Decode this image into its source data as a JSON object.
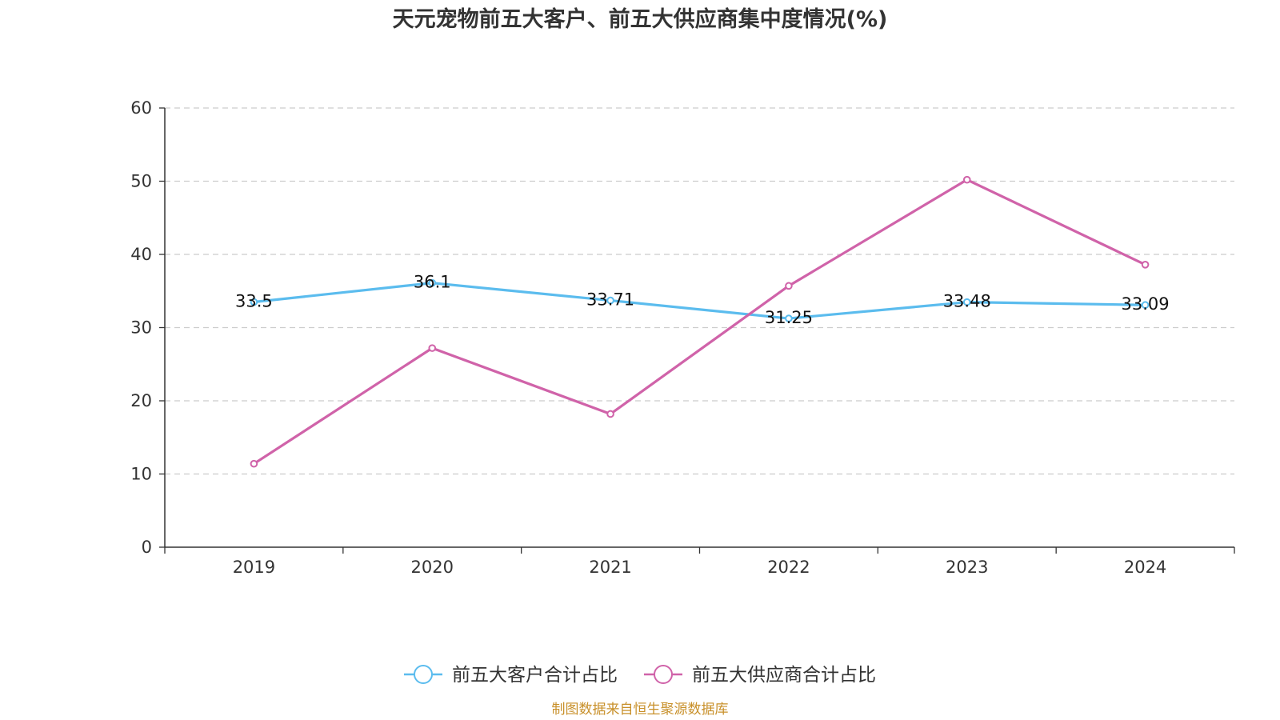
{
  "chart_data": {
    "type": "line",
    "title": "天元宠物前五大客户、前五大供应商集中度情况(%)",
    "categories": [
      "2019",
      "2020",
      "2021",
      "2022",
      "2023",
      "2024"
    ],
    "ylim": [
      0,
      60
    ],
    "yticks": [
      0,
      10,
      20,
      30,
      40,
      50,
      60
    ],
    "grid": true,
    "legend_position": "bottom-center",
    "series": [
      {
        "name": "前五大客户合计占比",
        "color": "#5bbcee",
        "values": [
          33.5,
          36.1,
          33.71,
          31.25,
          33.48,
          33.09
        ],
        "labels": [
          "33.5",
          "36.1",
          "33.71",
          "31.25",
          "33.48",
          "33.09"
        ],
        "show_labels": true
      },
      {
        "name": "前五大供应商合计占比",
        "color": "#d063a9",
        "values": [
          11.4,
          27.2,
          18.2,
          35.7,
          50.2,
          38.6
        ],
        "show_labels": false
      }
    ],
    "source": "制图数据来自恒生聚源数据库"
  }
}
